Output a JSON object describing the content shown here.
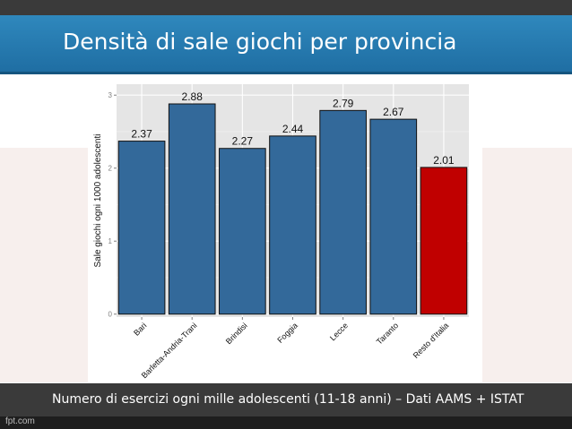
{
  "slide": {
    "title": "Densità di sale giochi per provincia",
    "caption": "Numero di esercizi ogni mille adolescenti (11-18 anni) – Dati AAMS + ISTAT",
    "watermark": "fpt.com"
  },
  "colors": {
    "bar_default": "#33699a",
    "bar_highlight": "#c00000",
    "panel_bg": "#e5e5e5",
    "title_band": "#2378b0"
  },
  "chart_data": {
    "type": "bar",
    "title": "",
    "xlabel": "",
    "ylabel": "Sale giochi ogni 1000 adolescenti",
    "categories": [
      "Bari",
      "Barletta-Andria-Trani",
      "Brindisi",
      "Foggia",
      "Lecce",
      "Taranto",
      "Resto d'Italia"
    ],
    "values": [
      2.37,
      2.88,
      2.27,
      2.44,
      2.79,
      2.67,
      2.01
    ],
    "data_labels": [
      "2.37",
      "2.88",
      "2.27",
      "2.44",
      "2.79",
      "2.67",
      "2.01"
    ],
    "highlight_index": 6,
    "yticks": [
      0,
      1,
      2,
      3
    ],
    "ylim": [
      -0.04,
      3.15
    ],
    "grid": true,
    "legend": "none"
  }
}
